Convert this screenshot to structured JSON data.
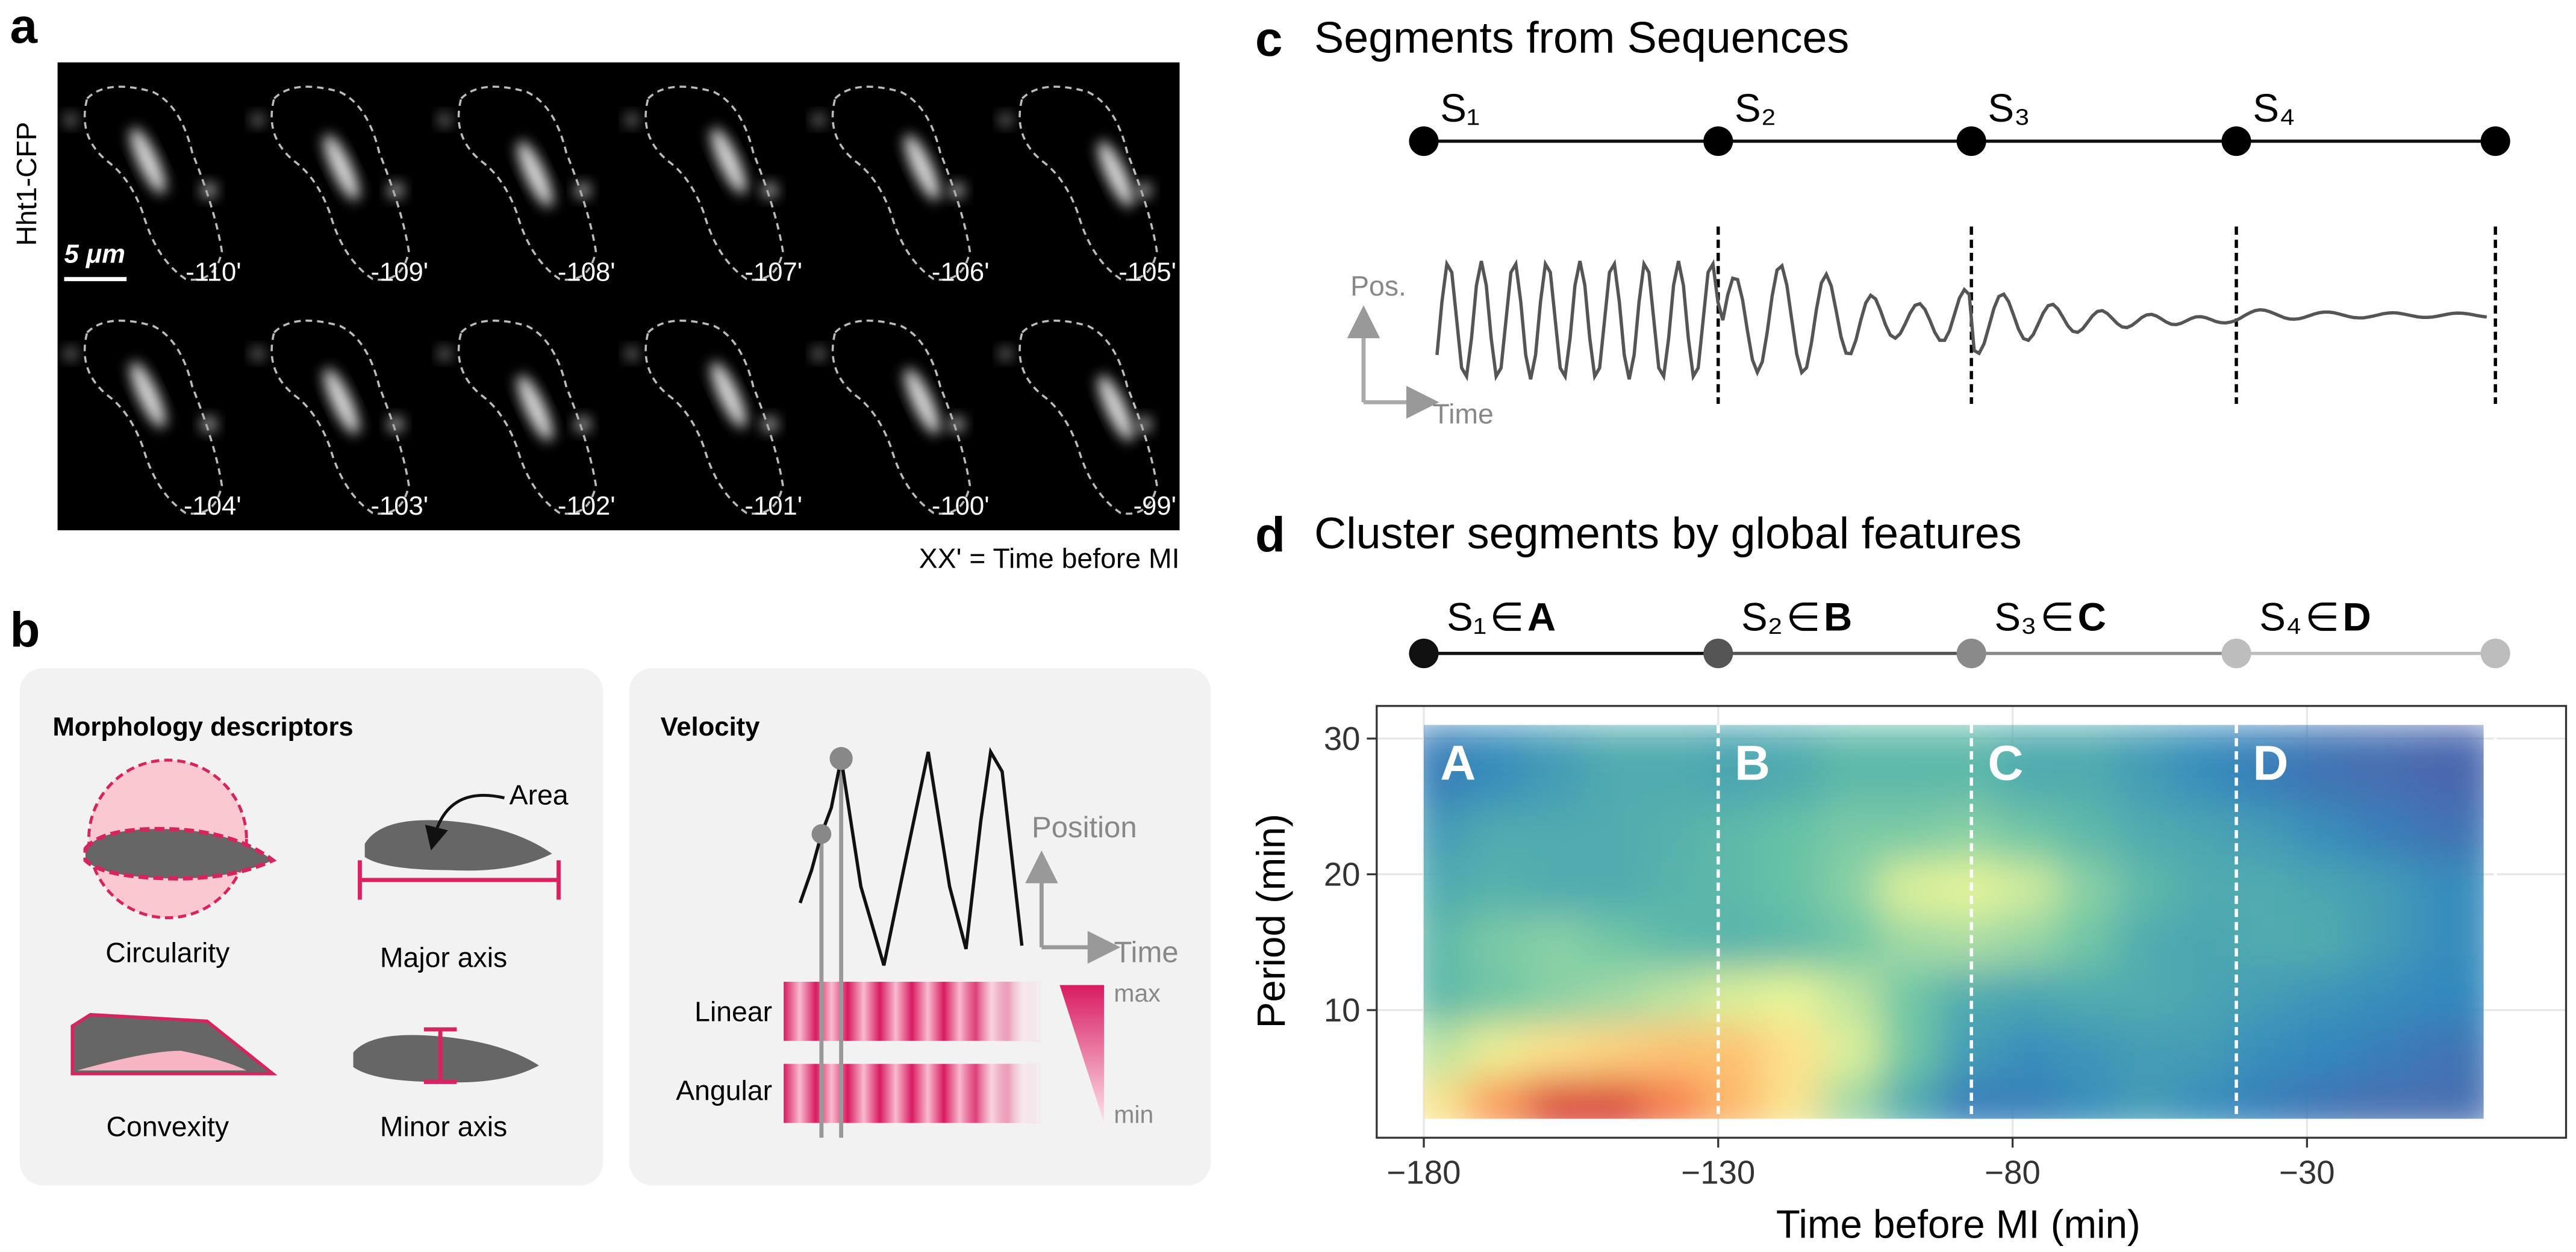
{
  "panel_a": {
    "label": "a",
    "channel": "Hht1-CFP",
    "scale_bar": "5 μm",
    "time_labels": [
      "-110'",
      "-109'",
      "-108'",
      "-107'",
      "-106'",
      "-105'",
      "-104'",
      "-103'",
      "-102'",
      "-101'",
      "-100'",
      "-99'"
    ],
    "caption": "XX' = Time before MI"
  },
  "panel_b": {
    "label": "b",
    "morphology": {
      "title": "Morphology descriptors",
      "area": "Area",
      "descriptors": [
        "Circularity",
        "Major axis",
        "Convexity",
        "Minor axis"
      ]
    },
    "velocity": {
      "title": "Velocity",
      "position": "Position",
      "time": "Time",
      "rows": [
        "Linear",
        "Angular"
      ],
      "max": "max",
      "min": "min"
    }
  },
  "panel_c": {
    "label": "c",
    "title": "Segments from Sequences",
    "segments": [
      "S₁",
      "S₂",
      "S₃",
      "S₄"
    ],
    "pos": "Pos.",
    "time": "Time"
  },
  "chart_data": {
    "type": "heatmap",
    "label": "d",
    "title": "Cluster segments by global features",
    "segments": [
      "S₁",
      "S₂",
      "S₃",
      "S₄"
    ],
    "member_symbol": "∈",
    "clusters": [
      "A",
      "B",
      "C",
      "D"
    ],
    "segment_bounds": [
      -180,
      -130,
      -87,
      -42,
      2
    ],
    "segment_colors": [
      "#111111",
      "#555555",
      "#8a8a8a",
      "#bdbdbd"
    ],
    "x_label": "Time before MI (min)",
    "y_label": "Period (min)",
    "xlim": [
      -188,
      14
    ],
    "ylim": [
      0.6,
      32.4
    ],
    "xticks": [
      {
        "value": -180,
        "label": "−180"
      },
      {
        "value": -130,
        "label": "−130"
      },
      {
        "value": -80,
        "label": "−80"
      },
      {
        "value": -30,
        "label": "−30"
      }
    ],
    "yticks": [
      10,
      20,
      30
    ],
    "grid": true,
    "x": [
      -175,
      -165,
      -155,
      -145,
      -135,
      -125,
      -115,
      -105,
      -95,
      -85,
      -75,
      -65,
      -55,
      -45,
      -35,
      -25,
      -15,
      -5
    ],
    "y": [
      4,
      8,
      12,
      16,
      20,
      24,
      28
    ],
    "z": [
      [
        0.7,
        0.85,
        0.95,
        0.95,
        0.88,
        0.8,
        0.7,
        0.5,
        0.3,
        0.15,
        0.15,
        0.2,
        0.25,
        0.2,
        0.15,
        0.12,
        0.1,
        0.1
      ],
      [
        0.55,
        0.65,
        0.72,
        0.75,
        0.78,
        0.78,
        0.72,
        0.6,
        0.4,
        0.25,
        0.2,
        0.22,
        0.25,
        0.25,
        0.2,
        0.18,
        0.15,
        0.12
      ],
      [
        0.35,
        0.4,
        0.45,
        0.5,
        0.55,
        0.6,
        0.62,
        0.55,
        0.4,
        0.3,
        0.28,
        0.3,
        0.3,
        0.28,
        0.25,
        0.22,
        0.2,
        0.18
      ],
      [
        0.35,
        0.42,
        0.45,
        0.4,
        0.35,
        0.33,
        0.35,
        0.4,
        0.5,
        0.52,
        0.48,
        0.4,
        0.3,
        0.28,
        0.3,
        0.3,
        0.25,
        0.2
      ],
      [
        0.3,
        0.32,
        0.3,
        0.3,
        0.33,
        0.35,
        0.38,
        0.45,
        0.6,
        0.62,
        0.58,
        0.45,
        0.35,
        0.3,
        0.3,
        0.28,
        0.25,
        0.2
      ],
      [
        0.25,
        0.3,
        0.3,
        0.3,
        0.32,
        0.35,
        0.38,
        0.42,
        0.42,
        0.45,
        0.4,
        0.35,
        0.3,
        0.28,
        0.25,
        0.2,
        0.15,
        0.12
      ],
      [
        0.15,
        0.2,
        0.25,
        0.3,
        0.3,
        0.28,
        0.3,
        0.35,
        0.35,
        0.35,
        0.3,
        0.3,
        0.25,
        0.2,
        0.15,
        0.12,
        0.1,
        0.08
      ]
    ]
  }
}
